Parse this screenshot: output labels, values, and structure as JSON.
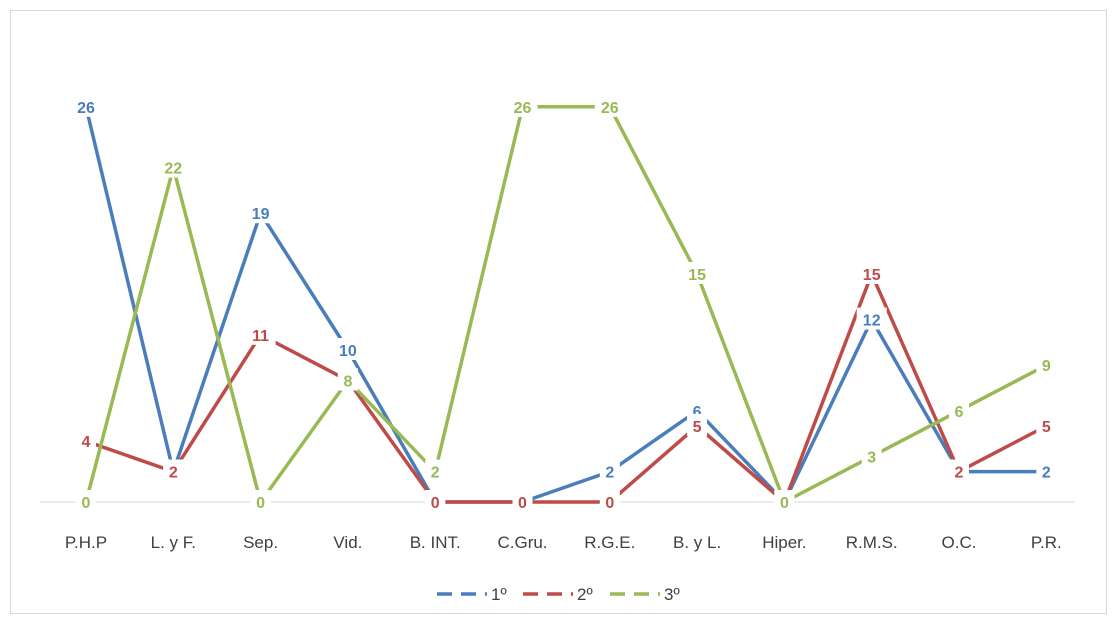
{
  "chart_data": {
    "type": "line",
    "categories": [
      "P.H.P",
      "L. y F.",
      "Sep.",
      "Vid.",
      "B. INT.",
      "C.Gru.",
      "R.G.E.",
      "B. y L.",
      "Hiper.",
      "R.M.S.",
      "O.C.",
      "P.R."
    ],
    "series": [
      {
        "name": "1º",
        "color": "#4a7ebb",
        "values": [
          26,
          2,
          19,
          10,
          0,
          0,
          2,
          6,
          0,
          12,
          2,
          2
        ]
      },
      {
        "name": "2º",
        "color": "#be4b48",
        "values": [
          4,
          2,
          11,
          8,
          0,
          0,
          0,
          5,
          0,
          15,
          2,
          5
        ]
      },
      {
        "name": "3º",
        "color": "#98b954",
        "values": [
          0,
          22,
          0,
          8,
          2,
          26,
          26,
          15,
          0,
          3,
          6,
          9
        ]
      }
    ],
    "title": "",
    "xlabel": "",
    "ylabel": "",
    "ylim": [
      0,
      28
    ],
    "grid": false,
    "legend": "bottom",
    "data_labels": true
  }
}
